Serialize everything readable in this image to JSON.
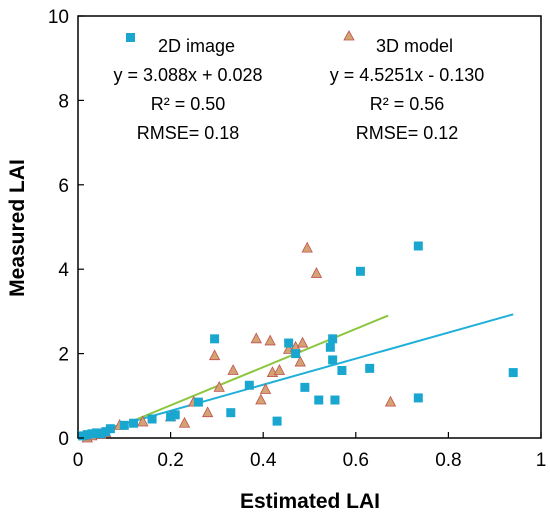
{
  "chart_data": {
    "type": "scatter",
    "xlabel": "Estimated LAI",
    "ylabel": "Measured LAI",
    "xlim": [
      0,
      1
    ],
    "ylim": [
      0,
      10
    ],
    "xticks": [
      "0",
      "0.2",
      "0.4",
      "0.6",
      "0.8",
      "1"
    ],
    "yticks": [
      "0",
      "2",
      "4",
      "6",
      "8",
      "10"
    ],
    "grid": false,
    "legend_position": "top",
    "colors": {
      "2d": "#1AA7CF",
      "3d": "#D4A373",
      "3d_edge": "#C0504D",
      "fit2d": "#1FB0D8",
      "fit3d": "#8CC63F"
    },
    "series": [
      {
        "name": "2D image",
        "marker": "square",
        "equation": "y = 3.088x + 0.028",
        "r2": "R² = 0.50",
        "rmse": "RMSE= 0.18",
        "fit": {
          "slope": 3.088,
          "intercept": 0.028,
          "x_range": [
            0.0,
            0.94
          ]
        },
        "points": [
          [
            0.01,
            0.05
          ],
          [
            0.02,
            0.08
          ],
          [
            0.03,
            0.1
          ],
          [
            0.04,
            0.12
          ],
          [
            0.05,
            0.1
          ],
          [
            0.06,
            0.15
          ],
          [
            0.07,
            0.22
          ],
          [
            0.1,
            0.3
          ],
          [
            0.12,
            0.35
          ],
          [
            0.16,
            0.45
          ],
          [
            0.2,
            0.5
          ],
          [
            0.21,
            0.55
          ],
          [
            0.26,
            0.85
          ],
          [
            0.295,
            2.35
          ],
          [
            0.33,
            0.6
          ],
          [
            0.37,
            1.25
          ],
          [
            0.43,
            0.4
          ],
          [
            0.455,
            2.25
          ],
          [
            0.47,
            2.0
          ],
          [
            0.49,
            1.2
          ],
          [
            0.52,
            0.9
          ],
          [
            0.545,
            2.15
          ],
          [
            0.55,
            2.35
          ],
          [
            0.55,
            1.85
          ],
          [
            0.555,
            0.9
          ],
          [
            0.57,
            1.6
          ],
          [
            0.61,
            3.95
          ],
          [
            0.63,
            1.65
          ],
          [
            0.735,
            4.55
          ],
          [
            0.735,
            0.95
          ],
          [
            0.94,
            1.55
          ]
        ]
      },
      {
        "name": "3D model",
        "marker": "triangle",
        "equation": "y = 4.5251x - 0.130",
        "r2": "R² = 0.56",
        "rmse": "RMSE= 0.12",
        "fit": {
          "slope": 4.5251,
          "intercept": -0.13,
          "x_range": [
            0.03,
            0.67
          ]
        },
        "points": [
          [
            0.02,
            0.0
          ],
          [
            0.03,
            0.05
          ],
          [
            0.05,
            0.08
          ],
          [
            0.06,
            0.12
          ],
          [
            0.09,
            0.3
          ],
          [
            0.14,
            0.38
          ],
          [
            0.2,
            0.5
          ],
          [
            0.23,
            0.35
          ],
          [
            0.25,
            0.85
          ],
          [
            0.28,
            0.6
          ],
          [
            0.295,
            1.95
          ],
          [
            0.305,
            1.2
          ],
          [
            0.335,
            1.6
          ],
          [
            0.385,
            2.35
          ],
          [
            0.395,
            0.9
          ],
          [
            0.405,
            1.15
          ],
          [
            0.415,
            2.3
          ],
          [
            0.42,
            1.55
          ],
          [
            0.435,
            1.6
          ],
          [
            0.455,
            2.1
          ],
          [
            0.47,
            2.15
          ],
          [
            0.48,
            1.8
          ],
          [
            0.485,
            2.25
          ],
          [
            0.495,
            4.5
          ],
          [
            0.515,
            3.9
          ],
          [
            0.675,
            0.85
          ]
        ]
      }
    ]
  }
}
